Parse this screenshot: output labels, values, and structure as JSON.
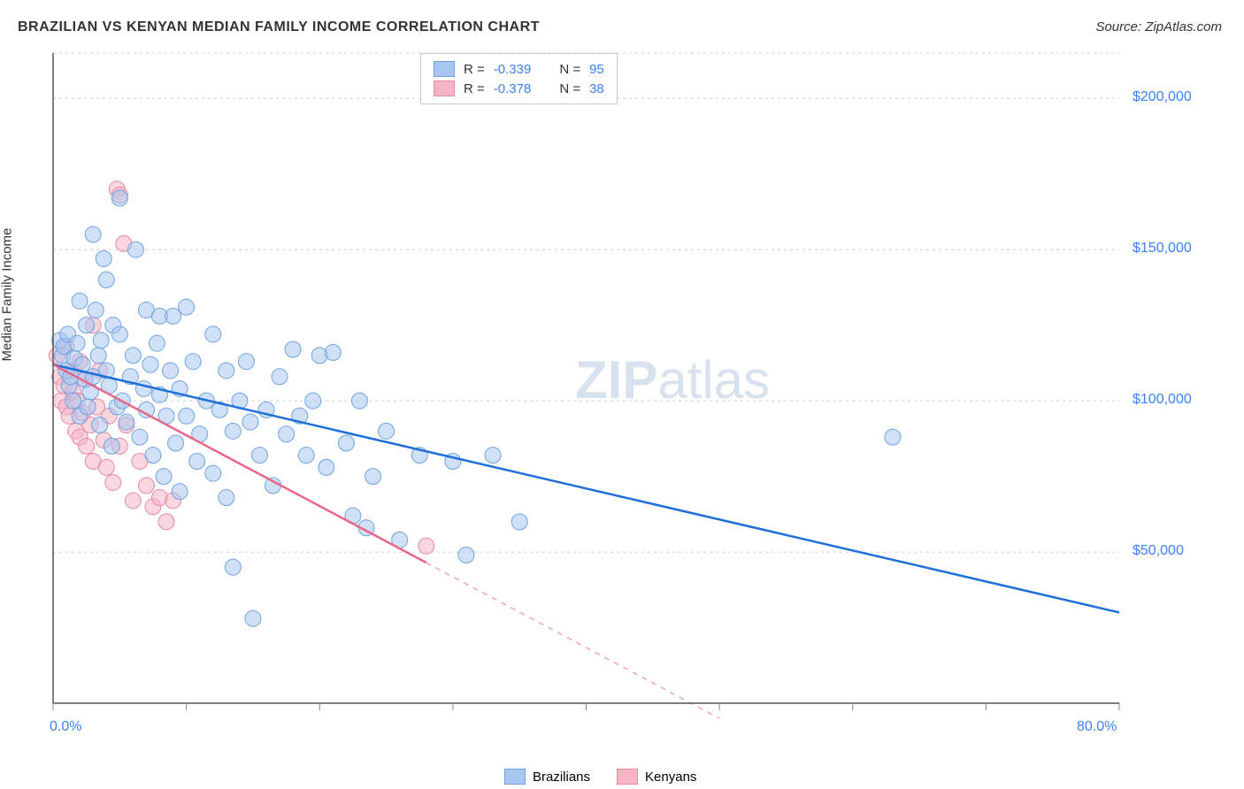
{
  "title": "BRAZILIAN VS KENYAN MEDIAN FAMILY INCOME CORRELATION CHART",
  "source": "Source: ZipAtlas.com",
  "watermark_zip": "ZIP",
  "watermark_atlas": "atlas",
  "y_axis_label": "Median Family Income",
  "chart": {
    "type": "scatter",
    "xlim": [
      0,
      80
    ],
    "ylim": [
      0,
      215000
    ],
    "x_ticks_minor": [
      0,
      10,
      20,
      30,
      40,
      50,
      60,
      70,
      80
    ],
    "x_tick_labels": [
      {
        "value": 0,
        "label": "0.0%"
      },
      {
        "value": 80,
        "label": "80.0%"
      }
    ],
    "y_grid": [
      50000,
      100000,
      150000,
      200000,
      215000
    ],
    "y_tick_labels": [
      {
        "value": 50000,
        "label": "$50,000"
      },
      {
        "value": 100000,
        "label": "$100,000"
      },
      {
        "value": 150000,
        "label": "$150,000"
      },
      {
        "value": 200000,
        "label": "$200,000"
      }
    ],
    "background_color": "#ffffff",
    "grid_color": "#cccccc",
    "axis_color": "#555555",
    "tick_color": "#888888",
    "marker_radius": 9,
    "marker_opacity": 0.55,
    "series": [
      {
        "name": "Brazilians",
        "fill": "#a7c7f0",
        "stroke": "#6fa3e0",
        "line_color": "#1e6fd9",
        "r_text": "R = ",
        "r_value": "-0.339",
        "n_text": "N = ",
        "n_value": "95",
        "trend": {
          "x1": 0,
          "y1": 112000,
          "x2": 80,
          "y2": 30000,
          "dash_after_x": null
        },
        "points": [
          [
            0.5,
            120000
          ],
          [
            0.7,
            115000
          ],
          [
            0.8,
            118000
          ],
          [
            1.0,
            110000
          ],
          [
            1.1,
            122000
          ],
          [
            1.2,
            105000
          ],
          [
            1.3,
            108000
          ],
          [
            1.5,
            100000
          ],
          [
            1.6,
            114000
          ],
          [
            1.8,
            119000
          ],
          [
            2.0,
            95000
          ],
          [
            2.0,
            133000
          ],
          [
            2.2,
            112000
          ],
          [
            2.4,
            107000
          ],
          [
            2.5,
            125000
          ],
          [
            2.6,
            98000
          ],
          [
            2.8,
            103000
          ],
          [
            3.0,
            155000
          ],
          [
            3.0,
            108000
          ],
          [
            3.2,
            130000
          ],
          [
            3.4,
            115000
          ],
          [
            3.5,
            92000
          ],
          [
            3.6,
            120000
          ],
          [
            3.8,
            147000
          ],
          [
            4.0,
            140000
          ],
          [
            4.0,
            110000
          ],
          [
            4.2,
            105000
          ],
          [
            4.4,
            85000
          ],
          [
            4.5,
            125000
          ],
          [
            4.8,
            98000
          ],
          [
            5.0,
            122000
          ],
          [
            5.0,
            167000
          ],
          [
            5.2,
            100000
          ],
          [
            5.5,
            93000
          ],
          [
            5.8,
            108000
          ],
          [
            6.0,
            115000
          ],
          [
            6.2,
            150000
          ],
          [
            6.5,
            88000
          ],
          [
            6.8,
            104000
          ],
          [
            7.0,
            130000
          ],
          [
            7.0,
            97000
          ],
          [
            7.3,
            112000
          ],
          [
            7.5,
            82000
          ],
          [
            7.8,
            119000
          ],
          [
            8.0,
            102000
          ],
          [
            8.0,
            128000
          ],
          [
            8.3,
            75000
          ],
          [
            8.5,
            95000
          ],
          [
            8.8,
            110000
          ],
          [
            9.0,
            128000
          ],
          [
            9.2,
            86000
          ],
          [
            9.5,
            70000
          ],
          [
            9.5,
            104000
          ],
          [
            10.0,
            131000
          ],
          [
            10.0,
            95000
          ],
          [
            10.5,
            113000
          ],
          [
            10.8,
            80000
          ],
          [
            11.0,
            89000
          ],
          [
            11.5,
            100000
          ],
          [
            12.0,
            122000
          ],
          [
            12.0,
            76000
          ],
          [
            12.5,
            97000
          ],
          [
            13.0,
            110000
          ],
          [
            13.0,
            68000
          ],
          [
            13.5,
            45000
          ],
          [
            13.5,
            90000
          ],
          [
            14.0,
            100000
          ],
          [
            14.5,
            113000
          ],
          [
            14.8,
            93000
          ],
          [
            15.0,
            28000
          ],
          [
            15.5,
            82000
          ],
          [
            16.0,
            97000
          ],
          [
            16.5,
            72000
          ],
          [
            17.0,
            108000
          ],
          [
            17.5,
            89000
          ],
          [
            18.0,
            117000
          ],
          [
            18.5,
            95000
          ],
          [
            19.0,
            82000
          ],
          [
            19.5,
            100000
          ],
          [
            20.0,
            115000
          ],
          [
            20.5,
            78000
          ],
          [
            21.0,
            116000
          ],
          [
            22.0,
            86000
          ],
          [
            22.5,
            62000
          ],
          [
            23.0,
            100000
          ],
          [
            23.5,
            58000
          ],
          [
            24.0,
            75000
          ],
          [
            25.0,
            90000
          ],
          [
            26.0,
            54000
          ],
          [
            27.5,
            82000
          ],
          [
            30.0,
            80000
          ],
          [
            31.0,
            49000
          ],
          [
            33.0,
            82000
          ],
          [
            35.0,
            60000
          ],
          [
            63.0,
            88000
          ]
        ]
      },
      {
        "name": "Kenyans",
        "fill": "#f5b5c4",
        "stroke": "#e88aa3",
        "line_color": "#e86688",
        "r_text": "R = ",
        "r_value": "-0.378",
        "n_text": "N = ",
        "n_value": "38",
        "trend": {
          "x1": 0,
          "y1": 112000,
          "x2": 50,
          "y2": -5000,
          "dash_after_x": 28
        },
        "points": [
          [
            0.3,
            115000
          ],
          [
            0.5,
            108000
          ],
          [
            0.6,
            100000
          ],
          [
            0.8,
            105000
          ],
          [
            1.0,
            98000
          ],
          [
            1.0,
            118000
          ],
          [
            1.2,
            95000
          ],
          [
            1.4,
            110000
          ],
          [
            1.5,
            103000
          ],
          [
            1.7,
            90000
          ],
          [
            1.8,
            100000
          ],
          [
            2.0,
            113000
          ],
          [
            2.0,
            88000
          ],
          [
            2.2,
            96000
          ],
          [
            2.4,
            107000
          ],
          [
            2.5,
            85000
          ],
          [
            2.8,
            92000
          ],
          [
            3.0,
            125000
          ],
          [
            3.0,
            80000
          ],
          [
            3.3,
            98000
          ],
          [
            3.5,
            110000
          ],
          [
            3.8,
            87000
          ],
          [
            4.0,
            78000
          ],
          [
            4.2,
            95000
          ],
          [
            4.5,
            73000
          ],
          [
            4.8,
            170000
          ],
          [
            5.0,
            168000
          ],
          [
            5.0,
            85000
          ],
          [
            5.3,
            152000
          ],
          [
            5.5,
            92000
          ],
          [
            6.0,
            67000
          ],
          [
            6.5,
            80000
          ],
          [
            7.0,
            72000
          ],
          [
            7.5,
            65000
          ],
          [
            8.0,
            68000
          ],
          [
            8.5,
            60000
          ],
          [
            9.0,
            67000
          ],
          [
            28.0,
            52000
          ]
        ]
      }
    ]
  }
}
